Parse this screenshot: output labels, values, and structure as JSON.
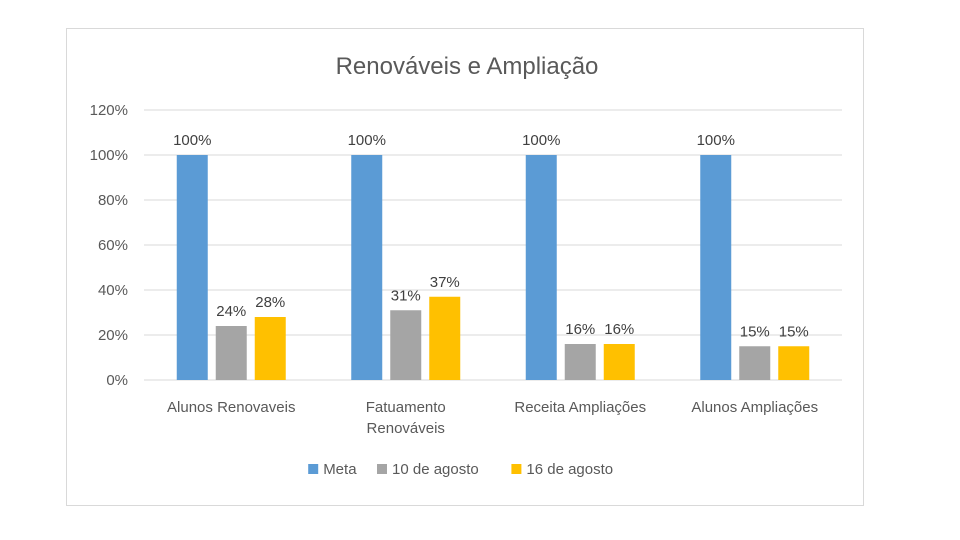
{
  "chart_data": {
    "type": "bar",
    "title": "Renováveis e Ampliação",
    "categories": [
      [
        "Alunos Renovaveis"
      ],
      [
        "Fatuamento",
        "Renováveis"
      ],
      [
        "Receita Ampliações"
      ],
      [
        "Alunos Ampliações"
      ]
    ],
    "series": [
      {
        "name": "Meta",
        "color": "#5b9bd5",
        "values": [
          100,
          100,
          100,
          100
        ],
        "labels": [
          "100%",
          "100%",
          "100%",
          "100%"
        ]
      },
      {
        "name": "10 de agosto",
        "color": "#a5a5a5",
        "values": [
          24,
          31,
          16,
          15
        ],
        "labels": [
          "24%",
          "31%",
          "16%",
          "15%"
        ]
      },
      {
        "name": "16 de agosto",
        "color": "#ffc000",
        "values": [
          28,
          37,
          16,
          15
        ],
        "labels": [
          "28%",
          "37%",
          "16%",
          "15%"
        ]
      }
    ],
    "ylim": [
      0,
      120
    ],
    "yticks": [
      0,
      20,
      40,
      60,
      80,
      100,
      120
    ],
    "ytick_labels": [
      "0%",
      "20%",
      "40%",
      "60%",
      "80%",
      "100%",
      "120%"
    ],
    "xlabel": "",
    "ylabel": "",
    "grid": true,
    "legend_position": "bottom"
  }
}
